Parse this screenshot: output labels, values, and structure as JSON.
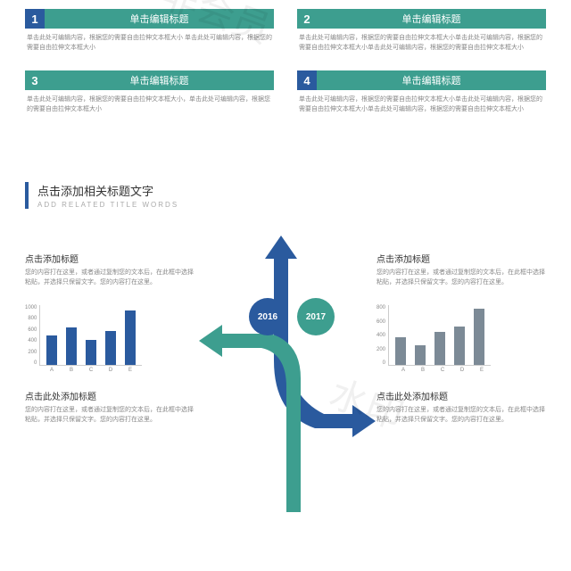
{
  "colors": {
    "blue": "#2a5a9e",
    "teal": "#3d9e8f",
    "gray": "#7c8a96"
  },
  "boxes": [
    {
      "n": "1",
      "nc": "#2a5a9e",
      "t": "单击编辑标题",
      "b": "单击此处可编辑内容，根据您的需要自由拉伸文本框大小\n单击此处可编辑内容，根据您的需要自由拉伸文本框大小"
    },
    {
      "n": "2",
      "nc": "#3d9e8f",
      "t": "单击编辑标题",
      "b": "单击此处可编辑内容，根据您的需要自由拉伸文本框大小单击此处可编辑内容，根据您的需要自由拉伸文本框大小单击此处可编辑内容，根据您的需要自由拉伸文本框大小"
    },
    {
      "n": "3",
      "nc": "#3d9e8f",
      "t": "单击编辑标题",
      "b": "单击此处可编辑内容，根据您的需要自由拉伸文本框大小，单击此处可编辑内容，根据您的需要自由拉伸文本框大小"
    },
    {
      "n": "4",
      "nc": "#2a5a9e",
      "t": "单击编辑标题",
      "b": "单击此处可编辑内容，根据您的需要自由拉伸文本框大小单击此处可编辑内容，根据您的需要自由拉伸文本框大小单击此处可编辑内容，根据您的需要自由拉伸文本框大小"
    }
  ],
  "section": {
    "title": "点击添加相关标题文字",
    "sub": "ADD RELATED TITLE WORDS"
  },
  "left": {
    "t1": "点击添加标题",
    "b1": "您的内容打在这里，或者通过复制您的文本后，在此框中选择粘贴，并选择只保留文字。您的内容打在这里。",
    "t2": "点击此处添加标题",
    "b2": "您的内容打在这里，或者通过复制您的文本后，在此框中选择粘贴，并选择只保留文字。您的内容打在这里。",
    "chart": {
      "ymax": 1000,
      "ystep": 200,
      "cats": [
        "A",
        "B",
        "C",
        "D",
        "E"
      ],
      "vals": [
        480,
        620,
        410,
        560,
        900
      ],
      "color": "#2a5a9e"
    }
  },
  "right": {
    "t1": "点击添加标题",
    "b1": "您的内容打在这里，或者通过复制您的文本后，在此框中选择粘贴，并选择只保留文字。您的内容打在这里。",
    "t2": "点击此处添加标题",
    "b2": "您的内容打在这里，或者通过复制您的文本后，在此框中选择粘贴，并选择只保留文字。您的内容打在这里。",
    "chart": {
      "ymax": 800,
      "ystep": 200,
      "cats": [
        "A",
        "B",
        "C",
        "D",
        "E"
      ],
      "vals": [
        370,
        260,
        440,
        510,
        740
      ],
      "color": "#7c8a96"
    }
  },
  "years": {
    "a": "2016",
    "ac": "#2a5a9e",
    "b": "2017",
    "bc": "#3d9e8f"
  },
  "watermark": "水印"
}
